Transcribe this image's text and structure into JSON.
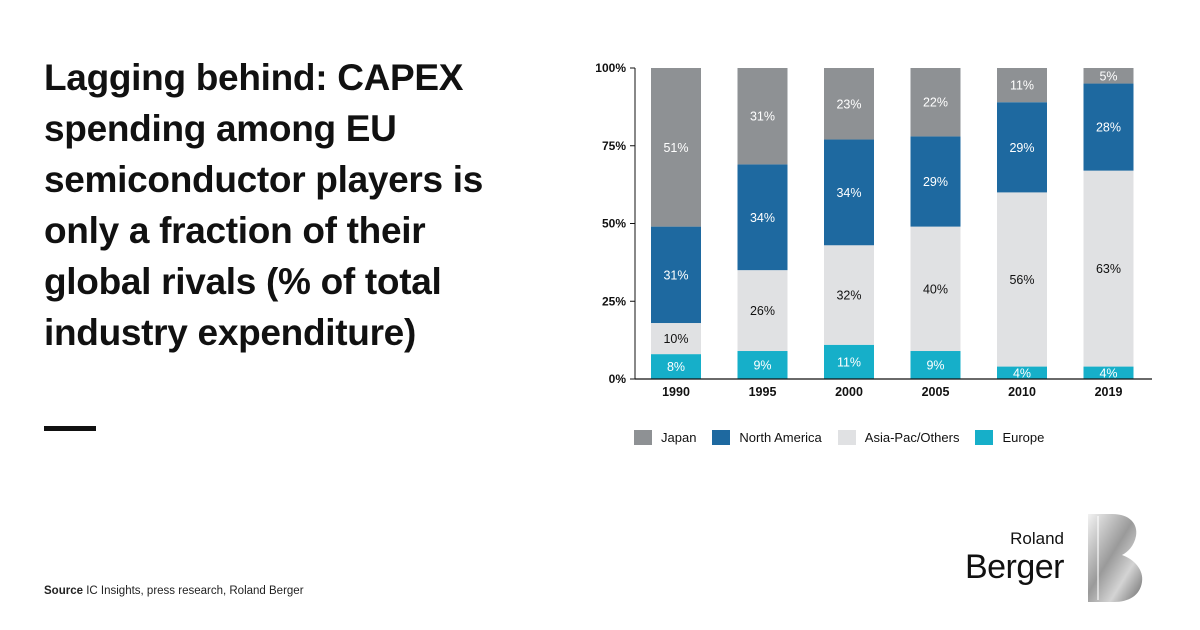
{
  "title": "Lagging behind: CAPEX spending among EU semiconductor players is only a fraction of their global rivals (% of total industry expenditure)",
  "source": {
    "label": "Source",
    "text": "IC Insights, press research, Roland Berger"
  },
  "logo": {
    "line1": "Roland",
    "line2": "Berger"
  },
  "colors": {
    "Japan": "#8e9194",
    "North America": "#1e69a0",
    "Asia-Pac/Others": "#e0e1e3",
    "Europe": "#16afc9"
  },
  "chart_data": {
    "type": "bar",
    "stacked": true,
    "categories": [
      "1990",
      "1995",
      "2000",
      "2005",
      "2010",
      "2019"
    ],
    "series": [
      {
        "name": "Europe",
        "values": [
          8,
          9,
          11,
          9,
          4,
          4
        ]
      },
      {
        "name": "Asia-Pac/Others",
        "values": [
          10,
          26,
          32,
          40,
          56,
          63
        ]
      },
      {
        "name": "North America",
        "values": [
          31,
          34,
          34,
          29,
          29,
          28
        ]
      },
      {
        "name": "Japan",
        "values": [
          51,
          31,
          23,
          22,
          11,
          5
        ]
      }
    ],
    "legend_order": [
      "Japan",
      "North America",
      "Asia-Pac/Others",
      "Europe"
    ],
    "y_ticks": [
      "0%",
      "25%",
      "50%",
      "75%",
      "100%"
    ],
    "ylim": [
      0,
      100
    ],
    "legend_labels": {
      "Japan": "Japan",
      "North America": "North America",
      "Asia-Pac/Others": "Asia-Pac/Others",
      "Europe": "Europe"
    }
  }
}
